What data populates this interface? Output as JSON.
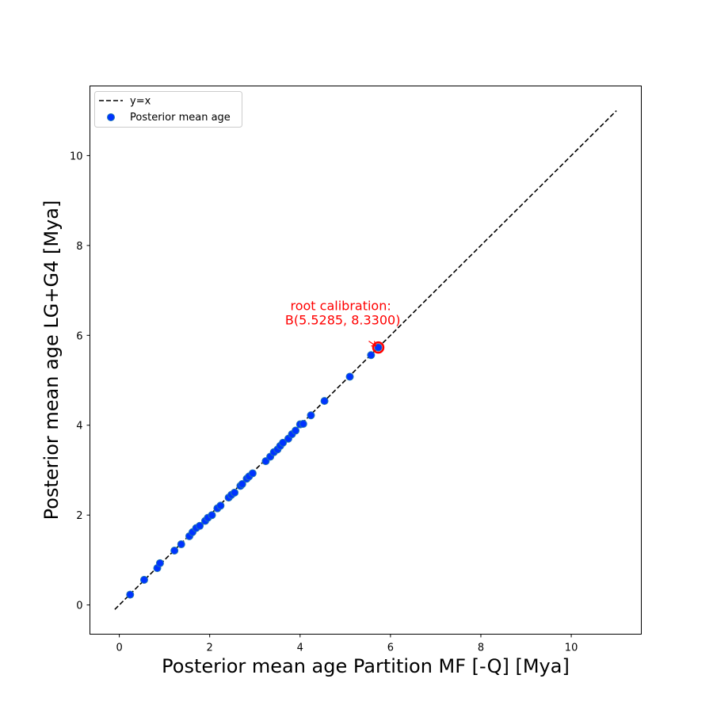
{
  "chart_data": {
    "type": "scatter",
    "xlabel": "Posterior mean age Partition MF [-Q] [Mya]",
    "ylabel": "Posterior mean age LG+G4 [Mya]",
    "xlim": [
      -0.65,
      11.55
    ],
    "ylim": [
      -0.65,
      11.55
    ],
    "x_ticks": [
      0,
      2,
      4,
      6,
      8,
      10
    ],
    "y_ticks": [
      0,
      2,
      4,
      6,
      8,
      10
    ],
    "x_tick_labels": [
      "0",
      "2",
      "4",
      "6",
      "8",
      "10"
    ],
    "y_tick_labels": [
      "0",
      "2",
      "4",
      "6",
      "8",
      "10"
    ],
    "grid": false,
    "legend_position": "upper-left",
    "reference_line": {
      "name": "y=x",
      "x": [
        -0.1,
        11.0
      ],
      "y": [
        -0.1,
        11.0
      ],
      "color": "#000000",
      "style": "dashed"
    },
    "series": [
      {
        "name": "Posterior mean age",
        "color": "#0033ff",
        "edge_color": "#1f77b4",
        "points": [
          [
            0.24,
            0.23
          ],
          [
            0.55,
            0.56
          ],
          [
            0.84,
            0.82
          ],
          [
            0.9,
            0.93
          ],
          [
            1.22,
            1.21
          ],
          [
            1.37,
            1.35
          ],
          [
            1.55,
            1.53
          ],
          [
            1.62,
            1.62
          ],
          [
            1.7,
            1.71
          ],
          [
            1.78,
            1.76
          ],
          [
            1.9,
            1.87
          ],
          [
            1.96,
            1.94
          ],
          [
            2.05,
            2.0
          ],
          [
            2.17,
            2.15
          ],
          [
            2.24,
            2.21
          ],
          [
            2.42,
            2.39
          ],
          [
            2.48,
            2.45
          ],
          [
            2.55,
            2.5
          ],
          [
            2.68,
            2.65
          ],
          [
            2.72,
            2.69
          ],
          [
            2.82,
            2.81
          ],
          [
            2.87,
            2.86
          ],
          [
            2.95,
            2.93
          ],
          [
            3.24,
            3.2
          ],
          [
            3.34,
            3.3
          ],
          [
            3.42,
            3.4
          ],
          [
            3.5,
            3.46
          ],
          [
            3.56,
            3.54
          ],
          [
            3.62,
            3.61
          ],
          [
            3.74,
            3.7
          ],
          [
            3.82,
            3.8
          ],
          [
            3.9,
            3.88
          ],
          [
            4.0,
            4.02
          ],
          [
            4.07,
            4.03
          ],
          [
            4.24,
            4.22
          ],
          [
            4.54,
            4.54
          ],
          [
            5.1,
            5.08
          ],
          [
            5.57,
            5.56
          ],
          [
            5.73,
            5.73
          ]
        ]
      }
    ],
    "highlight": {
      "x": 5.73,
      "y": 5.73,
      "color": "#ff0000"
    },
    "annotation": {
      "lines": [
        "root calibration:",
        " B(5.5285, 8.3300)"
      ],
      "color": "#ff0000",
      "text_anchor_xy": [
        4.9,
        6.4
      ],
      "arrow_to": [
        5.73,
        5.73
      ]
    }
  }
}
